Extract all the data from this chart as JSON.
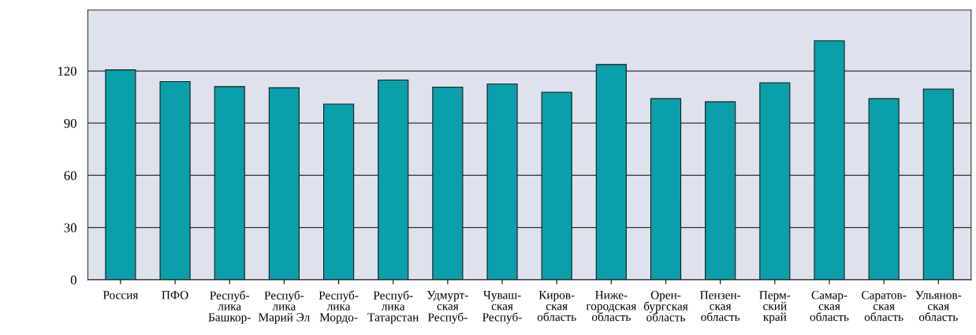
{
  "chart_data": {
    "type": "bar",
    "categories": [
      "Россия",
      "ПФО",
      "Респуб-\nлика\nБашкор-",
      "Респуб-\nлика\nМарий Эл",
      "Респуб-\nлика\nМордо-",
      "Респуб-\nлика\nТатарстан",
      "Удмурт-\nская\nРеспуб-",
      "Чуваш-\nская\nРеспуб-",
      "Киров-\nская\nобласть",
      "Ниже-\nгородская\nобласть",
      "Орен-\nбургская\nобласть",
      "Пензен-\nская\nобласть",
      "Перм-\nский\nкрай",
      "Самар-\nская\nобласть",
      "Саратов-\nская\nобласть",
      "Ульянов-\nская\nобласть"
    ],
    "values": [
      120.6,
      113.9,
      111.0,
      110.3,
      101.0,
      114.8,
      110.7,
      112.5,
      107.8,
      123.7,
      104.1,
      102.3,
      113.2,
      137.3,
      104.1,
      109.6
    ],
    "color": "#0a9fab",
    "ylim": [
      0,
      155
    ],
    "yticks": [
      0,
      30,
      60,
      90,
      120
    ],
    "grid": "y"
  }
}
